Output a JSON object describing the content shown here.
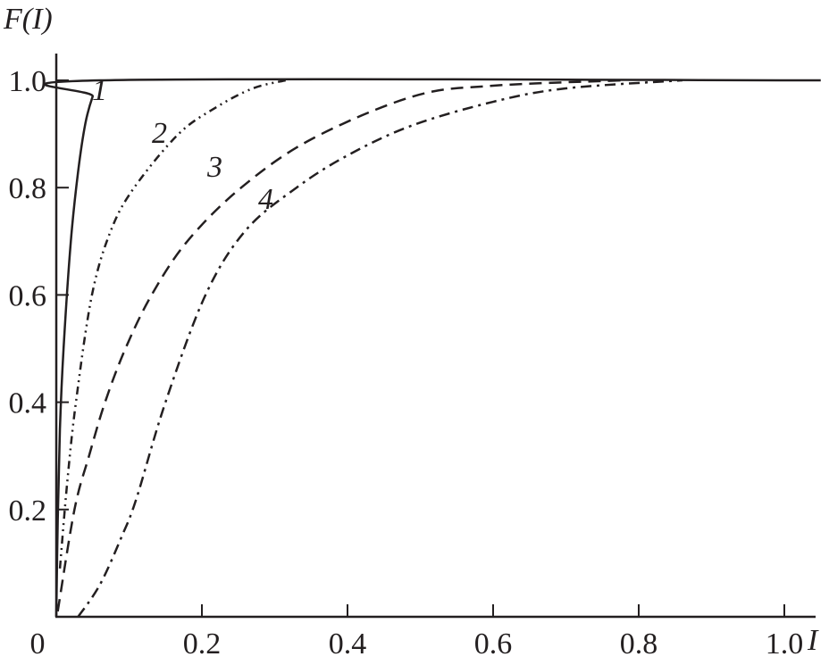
{
  "chart_data": {
    "type": "line",
    "title": "",
    "xlabel": "I",
    "ylabel": "F(I)",
    "xlim": [
      0,
      1.05
    ],
    "ylim": [
      0,
      1.05
    ],
    "grid": false,
    "x_ticks": [
      "0",
      "0.2",
      "0.4",
      "0.6",
      "0.8",
      "1.0"
    ],
    "x_tick_values": [
      0,
      0.2,
      0.4,
      0.6,
      0.8,
      1.0
    ],
    "y_ticks": [
      "0.2",
      "0.4",
      "0.6",
      "0.8",
      "1.0"
    ],
    "y_tick_values": [
      0.2,
      0.4,
      0.6,
      0.8,
      1.0
    ],
    "color": "#231f20",
    "series": [
      {
        "label": "1",
        "style": "solid",
        "points": [
          [
            0,
            0
          ],
          [
            0.002,
            0.18
          ],
          [
            0.005,
            0.35
          ],
          [
            0.01,
            0.5
          ],
          [
            0.02,
            0.7
          ],
          [
            0.03,
            0.83
          ],
          [
            0.04,
            0.92
          ],
          [
            0.05,
            0.97
          ],
          [
            0.06,
            1.0
          ],
          [
            1.05,
            1.0
          ]
        ]
      },
      {
        "label": "2",
        "style": "dash-dot-dot",
        "points": [
          [
            0.005,
            0.09
          ],
          [
            0.015,
            0.25
          ],
          [
            0.027,
            0.4
          ],
          [
            0.049,
            0.6
          ],
          [
            0.075,
            0.72
          ],
          [
            0.107,
            0.8
          ],
          [
            0.168,
            0.9
          ],
          [
            0.22,
            0.95
          ],
          [
            0.27,
            0.985
          ],
          [
            0.315,
            1.0
          ]
        ]
      },
      {
        "label": "3",
        "style": "dashed",
        "points": [
          [
            0.002,
            0.01
          ],
          [
            0.025,
            0.2
          ],
          [
            0.045,
            0.3
          ],
          [
            0.067,
            0.4
          ],
          [
            0.095,
            0.5
          ],
          [
            0.131,
            0.6
          ],
          [
            0.18,
            0.7
          ],
          [
            0.254,
            0.8
          ],
          [
            0.35,
            0.89
          ],
          [
            0.49,
            0.97
          ],
          [
            0.6,
            0.99
          ],
          [
            0.78,
            1.0
          ]
        ]
      },
      {
        "label": "4",
        "style": "dash-dot",
        "points": [
          [
            0.03,
            0
          ],
          [
            0.06,
            0.06
          ],
          [
            0.09,
            0.15
          ],
          [
            0.11,
            0.22
          ],
          [
            0.15,
            0.4
          ],
          [
            0.205,
            0.6
          ],
          [
            0.26,
            0.72
          ],
          [
            0.33,
            0.8
          ],
          [
            0.4,
            0.86
          ],
          [
            0.487,
            0.915
          ],
          [
            0.6,
            0.96
          ],
          [
            0.7,
            0.985
          ],
          [
            0.86,
            1.0
          ]
        ]
      }
    ]
  }
}
